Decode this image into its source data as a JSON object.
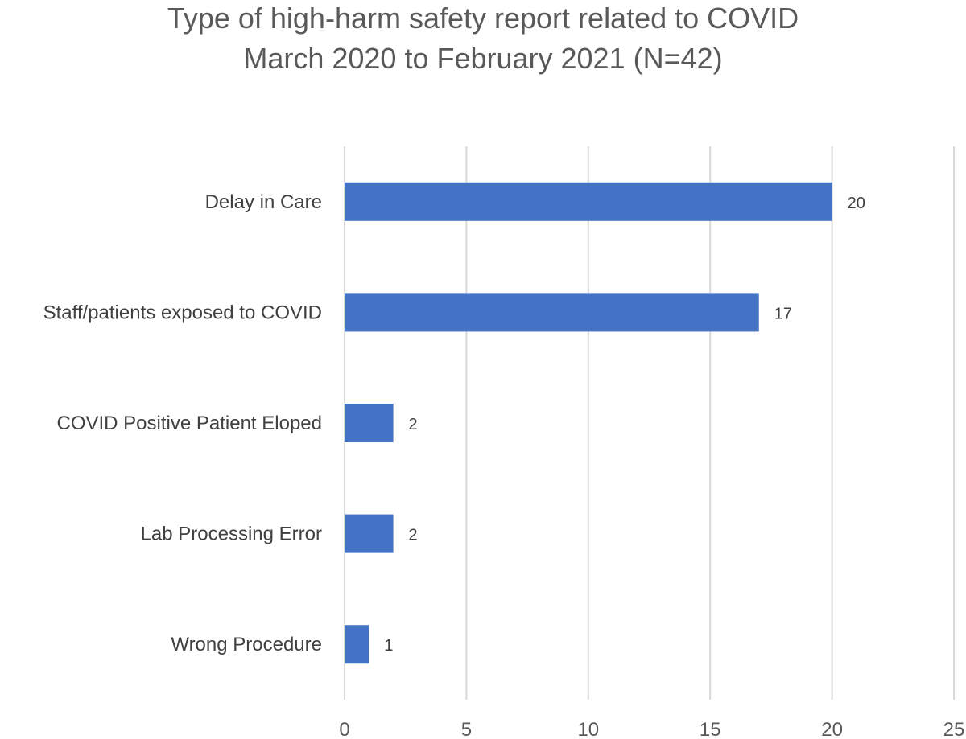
{
  "chart_data": {
    "type": "bar",
    "orientation": "horizontal",
    "title": "Type of high-harm safety report related to COVID",
    "subtitle": "March 2020 to February 2021 (N=42)",
    "categories": [
      "Delay in Care",
      "Staff/patients exposed to COVID",
      "COVID Positive Patient Eloped",
      "Lab Processing Error",
      "Wrong Procedure"
    ],
    "values": [
      20,
      17,
      2,
      2,
      1
    ],
    "xlim": [
      0,
      25
    ],
    "xticks": [
      0,
      5,
      10,
      15,
      20,
      25
    ],
    "xlabel": "",
    "ylabel": "",
    "grid": true,
    "data_labels": true,
    "bar_color": "#4472C4",
    "grid_color": "#D9D9D9"
  }
}
